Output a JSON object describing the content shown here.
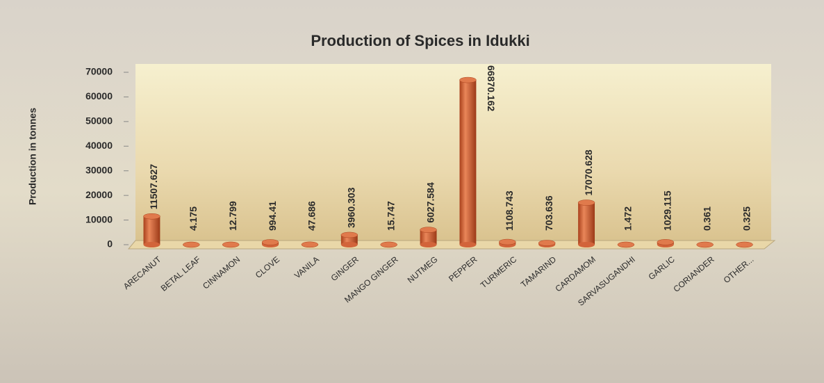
{
  "chart_data": {
    "type": "bar",
    "title": "Production of Spices in Idukki",
    "y_label": "Production in tonnes",
    "categories": [
      "ARECANUT",
      "BETAL LEAF",
      "CINNAMON",
      "CLOVE",
      "VANILA",
      "GINGER",
      "MANGO GINGER",
      "NUTMEG",
      "PEPPER",
      "TURMERIC",
      "TAMARIND",
      "CARDAMOM",
      "SARVASUGANDHI",
      "GARLIC",
      "CORIANDER",
      "OTHER..."
    ],
    "values": [
      11507.627,
      4.175,
      12.799,
      994.41,
      47.686,
      3960.303,
      15.747,
      6027.584,
      66870.162,
      1108.743,
      703.636,
      17070.628,
      1.472,
      1029.115,
      0.361,
      0.325
    ],
    "color": "#d2643a",
    "ylim": [
      0,
      70000
    ],
    "yticks": [
      0,
      10000,
      20000,
      30000,
      40000,
      50000,
      60000,
      70000
    ],
    "grid": false
  }
}
